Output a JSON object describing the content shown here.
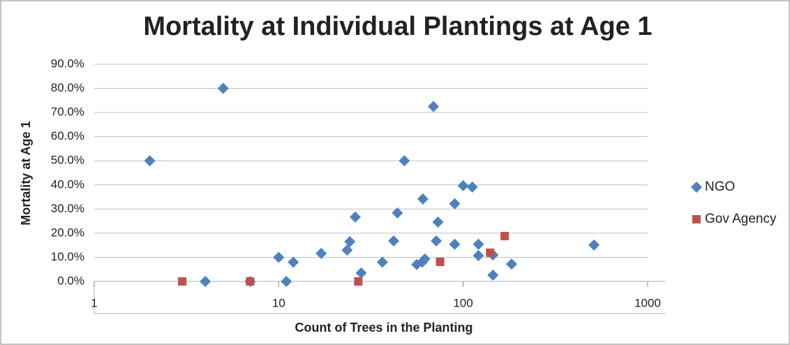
{
  "chart_data": {
    "type": "scatter",
    "title": "Mortality at Individual Plantings at Age 1",
    "x_label": "Count of Trees in the Planting",
    "y_label": "Mortality at Age 1",
    "xlim": [
      1,
      1000
    ],
    "xticks": [
      1,
      10,
      100,
      1000
    ],
    "xscale": "log",
    "ylim": [
      0,
      90
    ],
    "yticks": [
      {
        "value": 0,
        "label": "0.0%"
      },
      {
        "value": 10,
        "label": "10.0%"
      },
      {
        "value": 20,
        "label": "20.0%"
      },
      {
        "value": 30,
        "label": "30.0%"
      },
      {
        "value": 40,
        "label": "40.0%"
      },
      {
        "value": 50,
        "label": "50.0%"
      },
      {
        "value": 60,
        "label": "60.0%"
      },
      {
        "value": 70,
        "label": "70.0%"
      },
      {
        "value": 80,
        "label": "80.0%"
      },
      {
        "value": 90,
        "label": "90.0%"
      }
    ],
    "grid": true,
    "legend": "right",
    "series": [
      {
        "name": "NGO",
        "color": "#4f81bd",
        "marker": "diamond",
        "x": [
          2,
          5,
          4,
          7,
          10,
          11,
          12,
          17,
          23.5,
          24.3,
          26,
          28,
          36.5,
          42,
          48,
          44,
          60.5,
          56,
          60,
          62,
          69,
          71.5,
          73,
          90,
          90,
          100,
          112,
          121,
          121,
          145,
          145,
          183,
          512
        ],
        "values": [
          50,
          80,
          0,
          0,
          10,
          0,
          8,
          11.6,
          13,
          16.5,
          26.7,
          3.5,
          8,
          16.8,
          50,
          28.4,
          34.2,
          7,
          8,
          9.3,
          72.5,
          16.8,
          24.6,
          15.4,
          32.2,
          39.7,
          39.1,
          15.4,
          10.7,
          11,
          2.6,
          7.2,
          15.1
        ]
      },
      {
        "name": "Gov Agency",
        "color": "#c0504d",
        "marker": "square",
        "x": [
          3,
          7,
          27,
          75,
          140,
          168
        ],
        "values": [
          0,
          0,
          0,
          8.1,
          11.9,
          18.8
        ]
      }
    ]
  }
}
